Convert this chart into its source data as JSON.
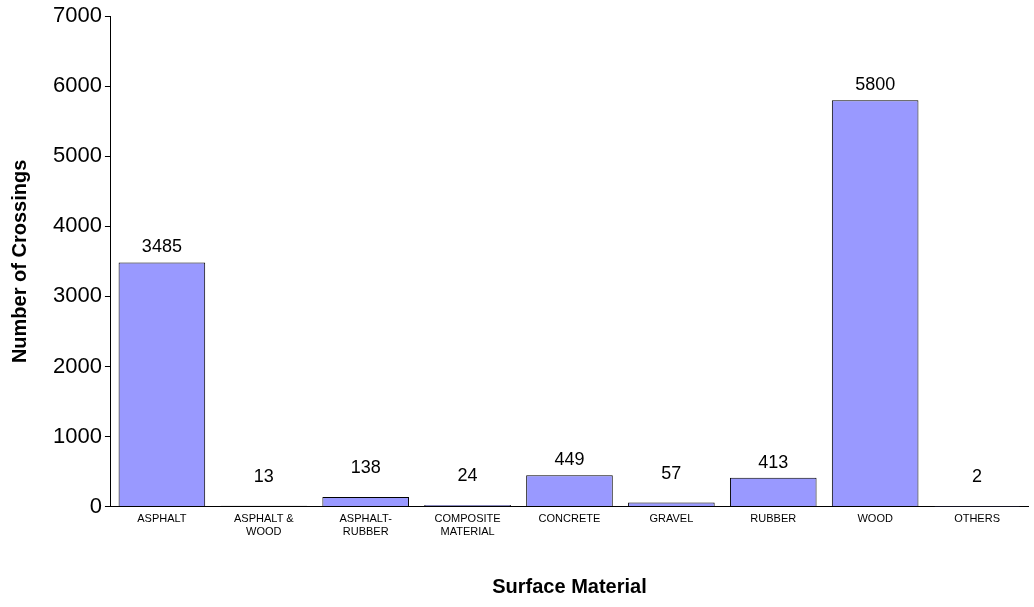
{
  "chart_data": {
    "type": "bar",
    "xlabel": "Surface Material",
    "ylabel": "Number of Crossings",
    "categories": [
      "ASPHALT",
      "ASPHALT & WOOD",
      "ASPHALT-RUBBER",
      "COMPOSITE MATERIAL",
      "CONCRETE",
      "GRAVEL",
      "RUBBER",
      "WOOD",
      "OTHERS"
    ],
    "values": [
      3485,
      13,
      138,
      24,
      449,
      57,
      413,
      5800,
      2
    ],
    "color": "#9999ff",
    "ylim": [
      0,
      7000
    ],
    "yticks": [
      0,
      1000,
      2000,
      3000,
      4000,
      5000,
      6000,
      7000
    ],
    "grid": false,
    "legend": false,
    "data_labels": true
  }
}
